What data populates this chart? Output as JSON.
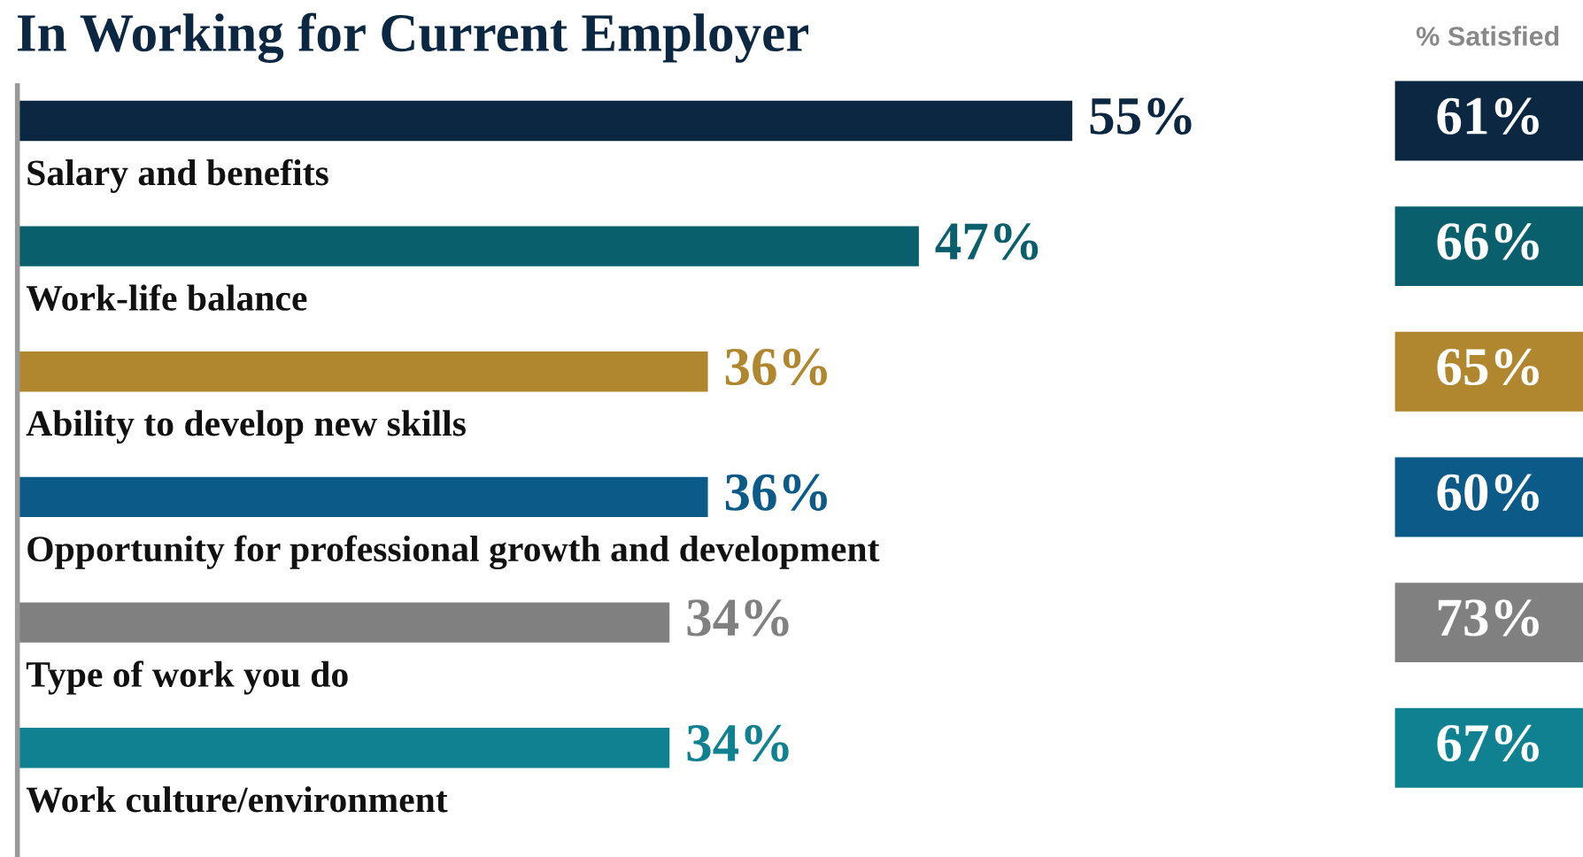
{
  "chart_data": {
    "type": "bar",
    "orientation": "horizontal",
    "title": "In Working for Current Employer",
    "categories": [
      "Salary and benefits",
      "Work-life balance",
      "Ability to develop new skills",
      "Opportunity for professional growth and development",
      "Type of work you do",
      "Work culture/environment"
    ],
    "values": [
      55,
      47,
      36,
      36,
      34,
      34
    ],
    "value_labels": [
      "55%",
      "47%",
      "36%",
      "36%",
      "34%",
      "34%"
    ],
    "colors": [
      "#0c2742",
      "#0a5f6c",
      "#b0862e",
      "#0c5a87",
      "#808080",
      "#0f8191"
    ],
    "annotations": [
      "% Satisfied",
      "61%",
      "66%",
      "65%",
      "60%",
      "73%",
      "67%"
    ]
  }
}
